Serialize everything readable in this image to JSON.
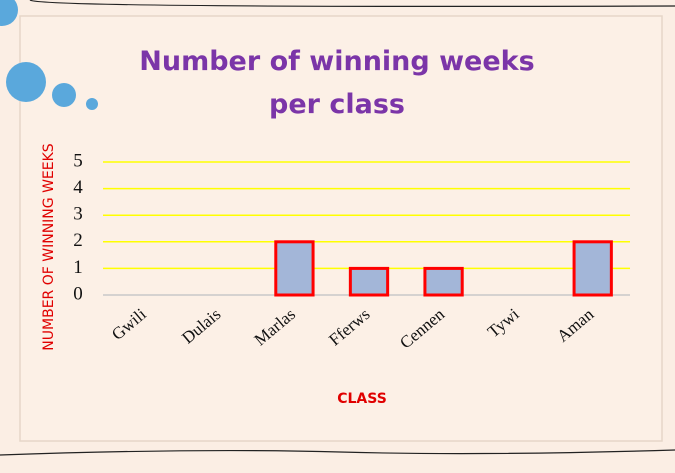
{
  "chart_data": {
    "type": "bar",
    "title": [
      "Number of winning weeks",
      "per class"
    ],
    "x_label": "CLASS",
    "y_label": "NUMBER OF WINNING WEEKS",
    "categories": [
      "Gwili",
      "Dulais",
      "Marlas",
      "Fferws",
      "Cennen",
      "Tywi",
      "Aman"
    ],
    "values": [
      0,
      0,
      2,
      1,
      1,
      0,
      2
    ],
    "color": "#a3b6d8",
    "edge_color": "#ff0000",
    "grid_color": "#ffff00",
    "ylim": [
      0,
      5
    ],
    "yticks": [
      0,
      1,
      2,
      3,
      4,
      5
    ],
    "grid": true
  }
}
